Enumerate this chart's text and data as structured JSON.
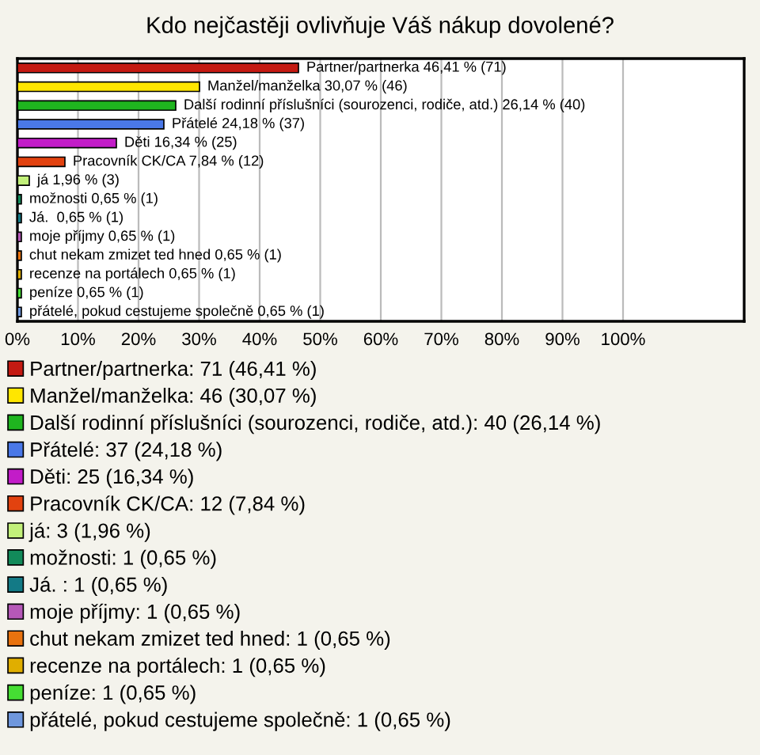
{
  "chart_data": {
    "type": "bar",
    "orientation": "horizontal",
    "title": "Kdo nejčastěji ovlivňuje Váš nákup dovolené?",
    "categories": [
      "Partner/partnerka",
      "Manžel/manželka",
      "Další rodinní příslušníci (sourozenci, rodiče, atd.)",
      "Přátelé",
      "Děti",
      "Pracovník CK/CA",
      "já",
      "možnosti",
      "Já. ",
      "moje příjmy",
      "chut nekam zmizet ted hned",
      "recenze na portálech",
      "peníze",
      "přátelé, pokud cestujeme společně"
    ],
    "series": [
      {
        "name": "Partner/partnerka: 71 (46,41 %)",
        "color": "#c41a12",
        "values": [
          46.41,
          null,
          null,
          null,
          null,
          null,
          null,
          null,
          null,
          null,
          null,
          null,
          null,
          null
        ],
        "value_labels": [
          "46,41 % (71)",
          null,
          null,
          null,
          null,
          null,
          null,
          null,
          null,
          null,
          null,
          null,
          null,
          null
        ]
      },
      {
        "name": "Manžel/manželka: 46 (30,07 %)",
        "color": "#ffe600",
        "values": [
          null,
          30.07,
          null,
          null,
          null,
          null,
          null,
          null,
          null,
          null,
          null,
          null,
          null,
          null
        ],
        "value_labels": [
          null,
          "30,07 % (46)",
          null,
          null,
          null,
          null,
          null,
          null,
          null,
          null,
          null,
          null,
          null,
          null
        ]
      },
      {
        "name": "Další rodinní příslušníci (sourozenci, rodiče, atd.): 40 (26,14 %)",
        "color": "#1fb51f",
        "values": [
          null,
          null,
          26.14,
          null,
          null,
          null,
          null,
          null,
          null,
          null,
          null,
          null,
          null,
          null
        ],
        "value_labels": [
          null,
          null,
          "26,14 % (40)",
          null,
          null,
          null,
          null,
          null,
          null,
          null,
          null,
          null,
          null,
          null
        ]
      },
      {
        "name": "Přátelé: 37 (24,18 %)",
        "color": "#4a78e8",
        "values": [
          null,
          null,
          null,
          24.18,
          null,
          null,
          null,
          null,
          null,
          null,
          null,
          null,
          null,
          null
        ],
        "value_labels": [
          null,
          null,
          null,
          "24,18 % (37)",
          null,
          null,
          null,
          null,
          null,
          null,
          null,
          null,
          null,
          null
        ]
      },
      {
        "name": "Děti: 25 (16,34 %)",
        "color": "#c21cc8",
        "values": [
          null,
          null,
          null,
          null,
          16.34,
          null,
          null,
          null,
          null,
          null,
          null,
          null,
          null,
          null
        ],
        "value_labels": [
          null,
          null,
          null,
          null,
          "16,34 % (25)",
          null,
          null,
          null,
          null,
          null,
          null,
          null,
          null,
          null
        ]
      },
      {
        "name": "Pracovník CK/CA: 12 (7,84 %)",
        "color": "#e2420f",
        "values": [
          null,
          null,
          null,
          null,
          null,
          7.84,
          null,
          null,
          null,
          null,
          null,
          null,
          null,
          null
        ],
        "value_labels": [
          null,
          null,
          null,
          null,
          null,
          "7,84 % (12)",
          null,
          null,
          null,
          null,
          null,
          null,
          null,
          null
        ]
      },
      {
        "name": "já: 3 (1,96 %)",
        "color": "#c2f07a",
        "values": [
          null,
          null,
          null,
          null,
          null,
          null,
          1.96,
          null,
          null,
          null,
          null,
          null,
          null,
          null
        ],
        "value_labels": [
          null,
          null,
          null,
          null,
          null,
          null,
          "1,96 % (3)",
          null,
          null,
          null,
          null,
          null,
          null,
          null
        ]
      },
      {
        "name": "možnosti: 1 (0,65 %)",
        "color": "#128a5a",
        "values": [
          null,
          null,
          null,
          null,
          null,
          null,
          null,
          0.65,
          null,
          null,
          null,
          null,
          null,
          null
        ],
        "value_labels": [
          null,
          null,
          null,
          null,
          null,
          null,
          null,
          "0,65 % (1)",
          null,
          null,
          null,
          null,
          null,
          null
        ]
      },
      {
        "name": "Já. : 1 (0,65 %)",
        "color": "#137a86",
        "values": [
          null,
          null,
          null,
          null,
          null,
          null,
          null,
          null,
          0.65,
          null,
          null,
          null,
          null,
          null
        ],
        "value_labels": [
          null,
          null,
          null,
          null,
          null,
          null,
          null,
          null,
          "0,65 % (1)",
          null,
          null,
          null,
          null,
          null
        ]
      },
      {
        "name": "moje příjmy: 1 (0,65 %)",
        "color": "#b558b8",
        "values": [
          null,
          null,
          null,
          null,
          null,
          null,
          null,
          null,
          null,
          0.65,
          null,
          null,
          null,
          null
        ],
        "value_labels": [
          null,
          null,
          null,
          null,
          null,
          null,
          null,
          null,
          null,
          "0,65 % (1)",
          null,
          null,
          null,
          null
        ]
      },
      {
        "name": "chut nekam zmizet ted hned: 1 (0,65 %)",
        "color": "#e8720f",
        "values": [
          null,
          null,
          null,
          null,
          null,
          null,
          null,
          null,
          null,
          null,
          0.65,
          null,
          null,
          null
        ],
        "value_labels": [
          null,
          null,
          null,
          null,
          null,
          null,
          null,
          null,
          null,
          null,
          "0,65 % (1)",
          null,
          null,
          null
        ]
      },
      {
        "name": "recenze na portálech: 1 (0,65 %)",
        "color": "#e0ae00",
        "values": [
          null,
          null,
          null,
          null,
          null,
          null,
          null,
          null,
          null,
          null,
          null,
          0.65,
          null,
          null
        ],
        "value_labels": [
          null,
          null,
          null,
          null,
          null,
          null,
          null,
          null,
          null,
          null,
          null,
          "0,65 % (1)",
          null,
          null
        ]
      },
      {
        "name": "peníze: 1 (0,65 %)",
        "color": "#45de33",
        "values": [
          null,
          null,
          null,
          null,
          null,
          null,
          null,
          null,
          null,
          null,
          null,
          null,
          0.65,
          null
        ],
        "value_labels": [
          null,
          null,
          null,
          null,
          null,
          null,
          null,
          null,
          null,
          null,
          null,
          null,
          "0,65 % (1)",
          null
        ]
      },
      {
        "name": "přátelé, pokud cestujeme společně: 1 (0,65 %)",
        "color": "#6f97dd",
        "values": [
          null,
          null,
          null,
          null,
          null,
          null,
          null,
          null,
          null,
          null,
          null,
          null,
          null,
          0.65
        ],
        "value_labels": [
          null,
          null,
          null,
          null,
          null,
          null,
          null,
          null,
          null,
          null,
          null,
          null,
          null,
          "0,65 % (1)"
        ]
      }
    ],
    "xlim": [
      0,
      120
    ],
    "xticks": [
      {
        "value": 0,
        "label": "0%"
      },
      {
        "value": 10,
        "label": "10%"
      },
      {
        "value": 20,
        "label": "20%"
      },
      {
        "value": 30,
        "label": "30%"
      },
      {
        "value": 40,
        "label": "40%"
      },
      {
        "value": 50,
        "label": "50%"
      },
      {
        "value": 60,
        "label": "60%"
      },
      {
        "value": 70,
        "label": "70%"
      },
      {
        "value": 80,
        "label": "80%"
      },
      {
        "value": 90,
        "label": "90%"
      },
      {
        "value": 100,
        "label": "100%"
      }
    ],
    "grid": "x",
    "legend": "bottom"
  }
}
